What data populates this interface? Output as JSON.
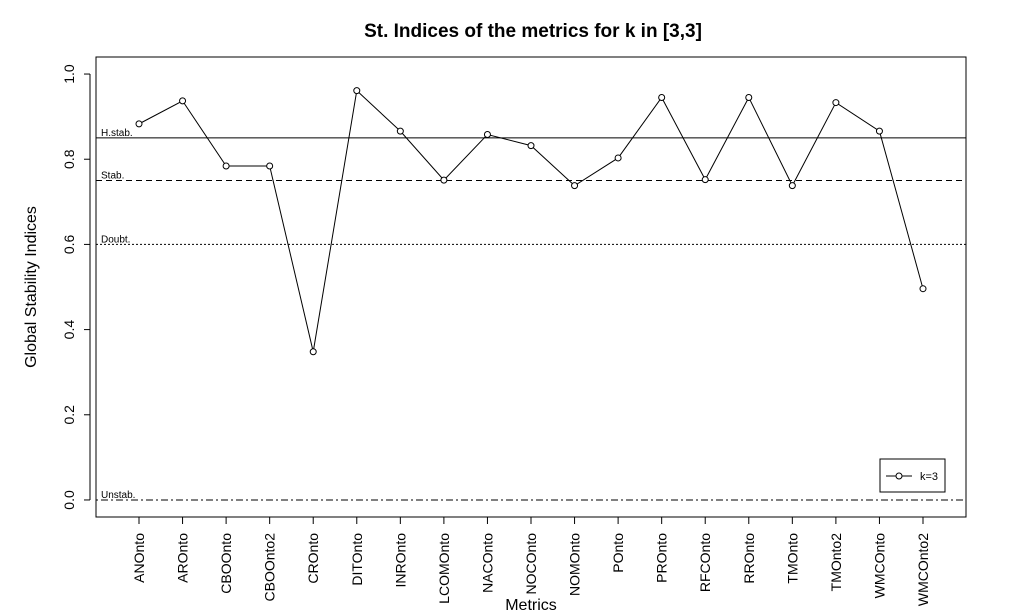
{
  "chart_data": {
    "type": "line",
    "title": "St. Indices of the metrics for k in [3,3]",
    "xlabel": "Metrics",
    "ylabel": "Global Stability Indices",
    "ylim": [
      -0.04,
      1.04
    ],
    "y_ticks": [
      "0.0",
      "0.2",
      "0.4",
      "0.6",
      "0.8",
      "1.0"
    ],
    "categories": [
      "ANOnto",
      "AROnto",
      "CBOOnto",
      "CBOOnto2",
      "CROnto",
      "DITOnto",
      "INROnto",
      "LCOMOnto",
      "NACOnto",
      "NOCOnto",
      "NOMOnto",
      "POnto",
      "PROnto",
      "RFCOnto",
      "RROnto",
      "TMOnto",
      "TMOnto2",
      "WMCOnto",
      "WMCOnto2"
    ],
    "series": [
      {
        "name": "k=3",
        "values": [
          0.883,
          0.937,
          0.784,
          0.784,
          0.348,
          0.961,
          0.866,
          0.751,
          0.858,
          0.832,
          0.738,
          0.803,
          0.945,
          0.752,
          0.945,
          0.738,
          0.933,
          0.866,
          0.496
        ],
        "color": "#000000",
        "marker": "open-circle"
      }
    ],
    "reference_lines": [
      {
        "label": "H.stab.",
        "value": 0.85,
        "style": "solid"
      },
      {
        "label": "Stab.",
        "value": 0.75,
        "style": "dashed"
      },
      {
        "label": "Doubt.",
        "value": 0.6,
        "style": "dotted"
      },
      {
        "label": "Unstab.",
        "value": 0.0,
        "style": "dotdash"
      }
    ],
    "legend": {
      "position": "bottom-right",
      "entries": [
        "k=3"
      ]
    },
    "grid": false
  }
}
